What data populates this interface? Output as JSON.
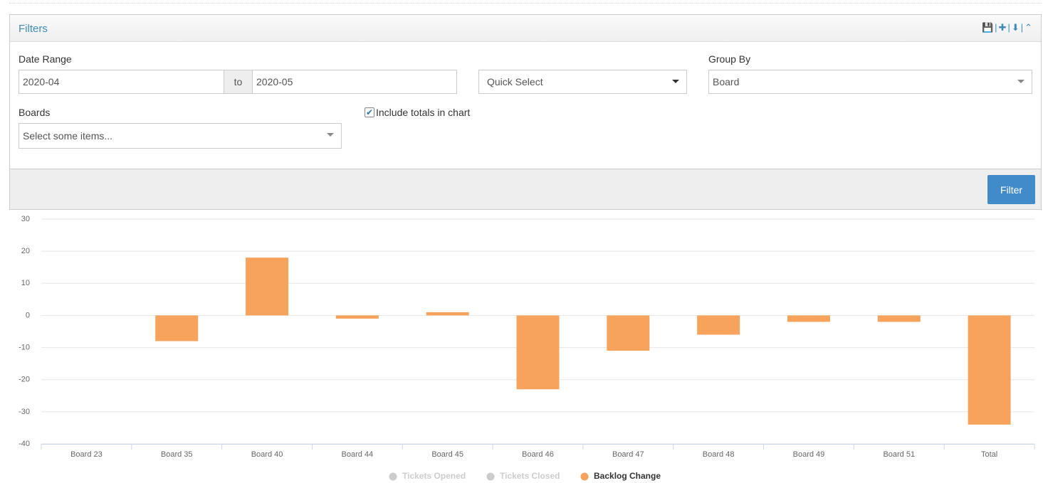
{
  "filters": {
    "title": "Filters",
    "date_range": {
      "label": "Date Range",
      "from": "2020-04",
      "separator": "to",
      "to": "2020-05"
    },
    "quick_select": "Quick Select",
    "group_by": {
      "label": "Group By",
      "value": "Board"
    },
    "boards": {
      "label": "Boards",
      "placeholder": "Select some items..."
    },
    "include_totals": {
      "label": "Include totals in chart",
      "checked": true
    },
    "button": "Filter"
  },
  "chart_data": {
    "type": "bar",
    "categories": [
      "Board 23",
      "Board 35",
      "Board 40",
      "Board 44",
      "Board 45",
      "Board 46",
      "Board 47",
      "Board 48",
      "Board 49",
      "Board 51",
      "Total"
    ],
    "series": [
      {
        "name": "Tickets Opened",
        "color": "#cccccc",
        "visible": false
      },
      {
        "name": "Tickets Closed",
        "color": "#cccccc",
        "visible": false
      },
      {
        "name": "Backlog Change",
        "color": "#f7a35c",
        "visible": true,
        "values": [
          0,
          -8,
          18,
          -1,
          1,
          -23,
          -11,
          -6,
          -2,
          -2,
          -34
        ]
      }
    ],
    "ylim": [
      -40,
      30
    ],
    "yticks": [
      -40,
      -30,
      -20,
      -10,
      0,
      10,
      20,
      30
    ],
    "grid": true
  }
}
